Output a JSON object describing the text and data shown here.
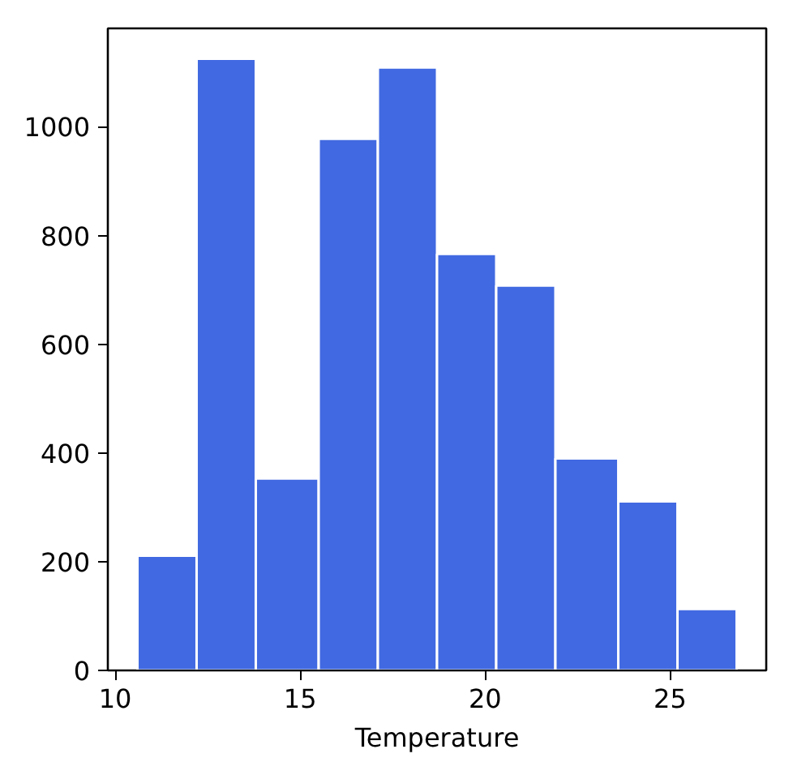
{
  "chart_data": {
    "type": "histogram",
    "xlabel": "Temperature",
    "bins": [
      10.6,
      12.2,
      13.8,
      15.5,
      17.1,
      18.7,
      20.3,
      21.9,
      23.6,
      25.2,
      26.8
    ],
    "values": [
      211,
      1125,
      353,
      978,
      1109,
      766,
      708,
      390,
      311,
      113
    ],
    "color": "#4169e1",
    "xlim": [
      9.8,
      27.6
    ],
    "xticks": [
      10,
      15,
      20,
      25
    ],
    "ylim": [
      0,
      1181
    ],
    "yticks": [
      0,
      200,
      400,
      600,
      800,
      1000
    ],
    "grid": false
  }
}
